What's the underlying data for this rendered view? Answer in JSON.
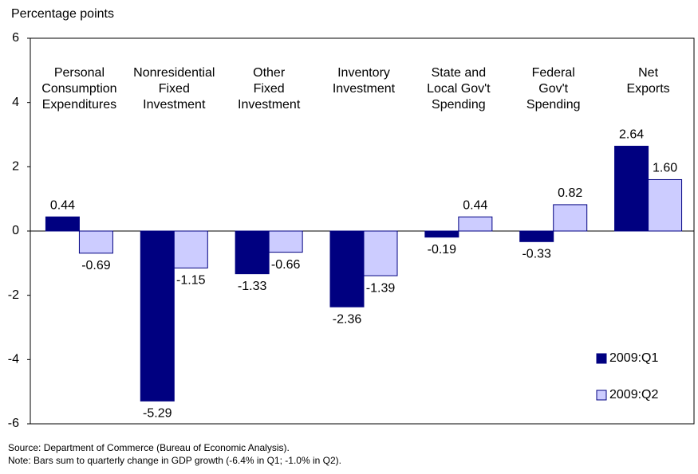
{
  "chart_data": {
    "type": "bar",
    "y_axis_label": "Percentage points",
    "categories": [
      "Personal\nConsumption\nExpenditures",
      "Nonresidential\nFixed\nInvestment",
      "Other\nFixed\nInvestment",
      "Inventory\nInvestment",
      "State and\nLocal Gov't\nSpending",
      "Federal\nGov't\nSpending",
      "Net\nExports"
    ],
    "series": [
      {
        "name": "2009:Q1",
        "color": "#000080",
        "values": [
          0.44,
          -5.29,
          -1.33,
          -2.36,
          -0.19,
          -0.33,
          2.64
        ],
        "value_labels": [
          "0.44",
          "-5.29",
          "-1.33",
          "-2.36",
          "-0.19",
          "-0.33",
          "2.64"
        ]
      },
      {
        "name": "2009:Q2",
        "color": "#ccccff",
        "values": [
          -0.69,
          -1.15,
          -0.66,
          -1.39,
          0.44,
          0.82,
          1.6
        ],
        "value_labels": [
          "-0.69",
          "-1.15",
          "-0.66",
          "-1.39",
          "0.44",
          "0.82",
          "1.60"
        ]
      }
    ],
    "ylim": [
      -6,
      6
    ],
    "yticks": [
      -6,
      -4,
      -2,
      0,
      2,
      4,
      6
    ],
    "legend": "lower right",
    "notes": [
      "Source: Department of Commerce (Bureau of Economic Analysis).",
      "Note: Bars sum to quarterly change in GDP growth (-6.4% in Q1; -1.0% in Q2)."
    ]
  }
}
